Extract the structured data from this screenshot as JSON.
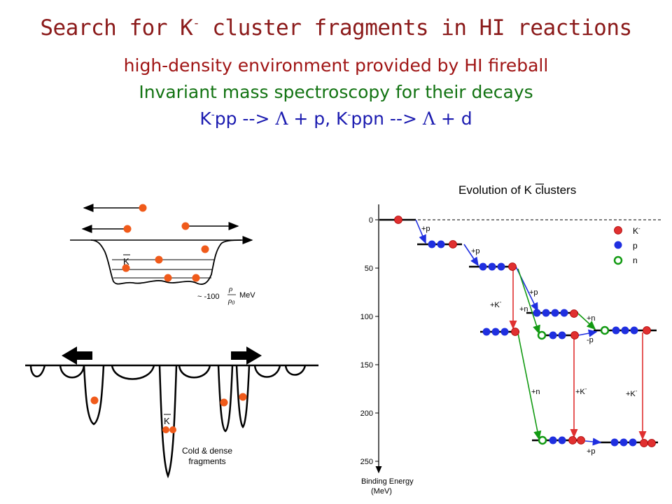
{
  "title": {
    "line1_pre": "Search for K",
    "line1_sup": "-",
    "line1_post": " cluster fragments in HI reactions",
    "line2": "high-density environment provided by HI fireball",
    "line3": "Invariant mass spectroscopy for their decays",
    "line4": {
      "k1": "K",
      "sup1": "-",
      "a": "pp --> ",
      "lambda1": "Λ",
      "b": " + p, K",
      "sup2": "-",
      "c": "ppn --> ",
      "lambda2": "Λ",
      "d": " + d"
    }
  },
  "left_panel": {
    "kbar_label": "K",
    "depth_label": "~ -100",
    "rho_num": "ρ",
    "rho_den": "ρ",
    "rho_den_sub": "0",
    "unit": "MeV",
    "fragments_label_1": "Cold & dense",
    "fragments_label_2": "fragments",
    "kbar_label_2": "K"
  },
  "right_panel": {
    "title_pre": "Evolution of ",
    "title_k": "K",
    "title_post": " clusters",
    "axis_title_1": "Binding Energy",
    "axis_title_2": "(MeV)",
    "y_ticks": [
      "0",
      "50",
      "100",
      "150",
      "200",
      "250"
    ],
    "legend": [
      {
        "label": "K",
        "sup": "-"
      },
      {
        "label": "p",
        "sup": ""
      },
      {
        "label": "n",
        "sup": ""
      }
    ],
    "transitions": {
      "p1": "+p",
      "p2": "+p",
      "p3": "+p",
      "km1": "+K",
      "n1": "+n",
      "n2": "+n",
      "minus_p": "-p",
      "n3": "+n",
      "km2": "+K",
      "km3": "+K",
      "p4": "+p"
    },
    "k_sup": "-"
  },
  "colors": {
    "title_red": "#8b1a1a",
    "env_red": "#a01515",
    "green": "#127312",
    "blue_text": "#1b1bb0",
    "kaon_red": "#e03030",
    "proton_blue": "#1f2fe0",
    "neutron_green": "#129a12",
    "orange_dot": "#f05a1a"
  }
}
